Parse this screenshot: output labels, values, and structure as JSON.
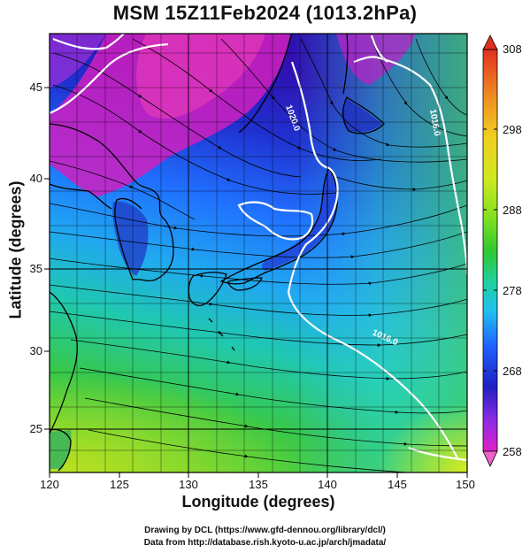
{
  "title": "MSM 15Z11Feb2024 (1013.2hPa)",
  "axes": {
    "xlabel": "Longitude (degrees)",
    "ylabel": "Latitude  (degrees)",
    "x_ticks": [
      "120",
      "125",
      "130",
      "135",
      "140",
      "145",
      "150"
    ],
    "y_ticks": [
      "25",
      "30",
      "35",
      "40",
      "45"
    ],
    "lon_range": [
      120,
      150
    ],
    "lat_range": [
      22.4,
      47.6
    ]
  },
  "colorbar": {
    "ticks": [
      "308",
      "298",
      "288",
      "278",
      "268",
      "258"
    ],
    "range": [
      258,
      308
    ],
    "colors": [
      "#f0e6ff",
      "#e020c8",
      "#8a2be2",
      "#2020c0",
      "#2060ff",
      "#20c0f0",
      "#20d0a0",
      "#30c830",
      "#80e020",
      "#d0e820",
      "#f0d020",
      "#f09020",
      "#e03020"
    ],
    "arrows": "both ends"
  },
  "contours": [
    {
      "label": "1020.0"
    },
    {
      "label": "1016.0"
    },
    {
      "label": "1016.0"
    }
  ],
  "footer": {
    "line1": "Drawing by DCL (https://www.gfd-dennou.org/library/dcl/)",
    "line2": "Data from http://database.rish.kyoto-u.ac.jp/arch/jmadata/"
  },
  "colors": {
    "land_outline": "#000000",
    "streamline": "#000000",
    "contour": "#ffffff",
    "grid": "#000000"
  }
}
